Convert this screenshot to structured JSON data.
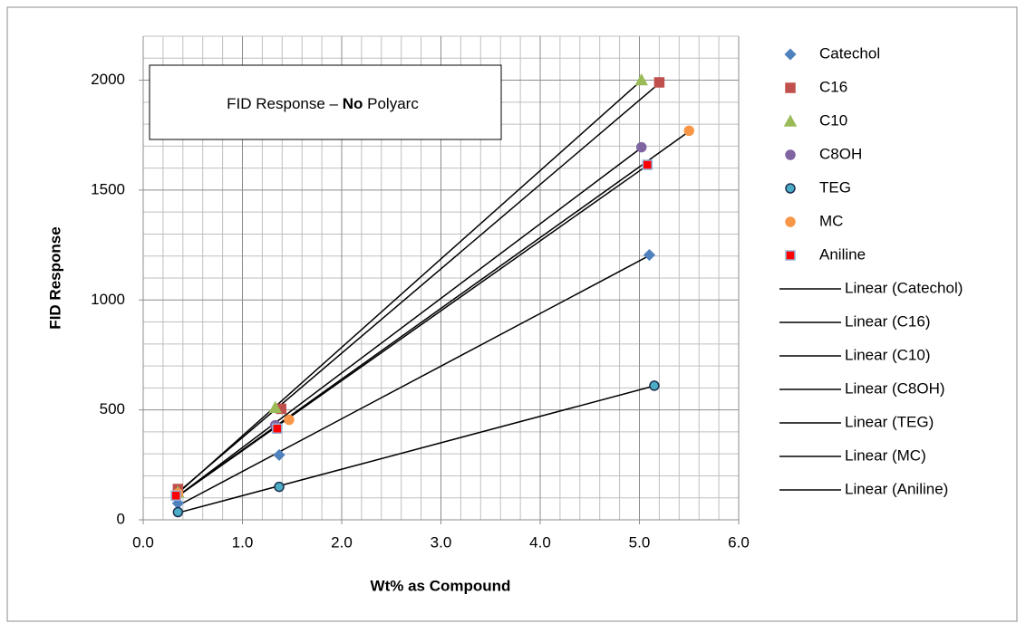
{
  "chart_data": {
    "type": "scatter",
    "annotation": [
      {
        "text": "FID Response – "
      },
      {
        "text": "No",
        "bold": true
      },
      {
        "text": " Polyarc"
      }
    ],
    "x_label": "Wt% as Compound",
    "y_label": "FID Response",
    "xlim": [
      0,
      6
    ],
    "ylim": [
      0,
      2200
    ],
    "xticks": [
      {
        "value": 0,
        "label": "0.0"
      },
      {
        "value": 1,
        "label": "1.0"
      },
      {
        "value": 2,
        "label": "2.0"
      },
      {
        "value": 3,
        "label": "3.0"
      },
      {
        "value": 4,
        "label": "4.0"
      },
      {
        "value": 5,
        "label": "5.0"
      },
      {
        "value": 6,
        "label": "6.0"
      }
    ],
    "yticks": [
      0,
      500,
      1000,
      1500,
      2000
    ],
    "x_minor_grid": [
      0.2,
      0.4,
      0.6,
      0.8,
      1.2,
      1.4,
      1.6,
      1.8,
      2.2,
      2.4,
      2.6,
      2.8,
      3.2,
      3.4,
      3.6,
      3.8,
      4.2,
      4.4,
      4.6,
      4.8,
      5.2,
      5.4,
      5.6,
      5.8
    ],
    "y_minor_grid": [
      100,
      200,
      300,
      400,
      600,
      700,
      800,
      900,
      1100,
      1200,
      1300,
      1400,
      1600,
      1700,
      1800,
      1900,
      2100,
      2200
    ],
    "grid": true,
    "legend": "right",
    "trendline_color": "#000000",
    "series": [
      {
        "name": "Catechol",
        "trendline": "Linear (Catechol)",
        "marker": "diamond",
        "color": "#4f81bd",
        "edgecolor": "#4f81bd",
        "x": [
          0.35,
          1.37,
          5.1
        ],
        "values": [
          75,
          295,
          1205
        ]
      },
      {
        "name": "C16",
        "trendline": "Linear (C16)",
        "marker": "square",
        "color": "#c0504d",
        "edgecolor": "#c0504d",
        "x": [
          0.35,
          1.39,
          5.2
        ],
        "values": [
          140,
          505,
          1990
        ]
      },
      {
        "name": "C10",
        "trendline": "Linear (C10)",
        "marker": "triangle",
        "color": "#9bbb59",
        "edgecolor": "#9bbb59",
        "x": [
          0.35,
          1.33,
          5.02
        ],
        "values": [
          125,
          510,
          2000
        ]
      },
      {
        "name": "C8OH",
        "trendline": "Linear (C8OH)",
        "marker": "circle",
        "color": "#8064a2",
        "edgecolor": "#8064a2",
        "x": [
          0.33,
          1.33,
          5.02
        ],
        "values": [
          110,
          430,
          1695
        ]
      },
      {
        "name": "TEG",
        "trendline": "Linear (TEG)",
        "marker": "circle",
        "color": "#4bacc6",
        "edgecolor": "#1f2f4f",
        "x": [
          0.35,
          1.37,
          5.15
        ],
        "values": [
          35,
          150,
          610
        ]
      },
      {
        "name": "MC",
        "trendline": "Linear (MC)",
        "marker": "circle",
        "color": "#f79646",
        "edgecolor": "#f79646",
        "x": [
          0.35,
          1.47,
          5.5
        ],
        "values": [
          120,
          455,
          1770
        ]
      },
      {
        "name": "Aniline",
        "trendline": "Linear (Aniline)",
        "marker": "square",
        "color": "#ff0000",
        "edgecolor": "#95b3d7",
        "x": [
          0.33,
          1.35,
          5.08
        ],
        "values": [
          110,
          415,
          1615
        ]
      }
    ]
  }
}
